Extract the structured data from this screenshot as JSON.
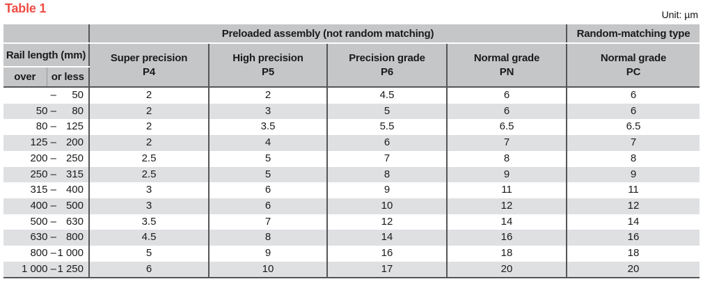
{
  "title": "Table 1",
  "unit": "Unit: µm",
  "table": {
    "group_headers": {
      "preloaded": "Preloaded assembly (not random matching)",
      "random": "Random-matching type"
    },
    "rail_length_header": "Rail length (mm)",
    "over_label": "over",
    "or_less_label": "or less",
    "columns": [
      {
        "name": "Super precision",
        "code": "P4"
      },
      {
        "name": "High precision",
        "code": "P5"
      },
      {
        "name": "Precision grade",
        "code": "P6"
      },
      {
        "name": "Normal grade",
        "code": "PN"
      },
      {
        "name": "Normal grade",
        "code": "PC"
      }
    ],
    "rows": [
      {
        "over": "–",
        "or_less": "50",
        "values": [
          "2",
          "2",
          "4.5",
          "6",
          "6"
        ]
      },
      {
        "over": "50 –",
        "or_less": "80",
        "values": [
          "2",
          "3",
          "5",
          "6",
          "6"
        ]
      },
      {
        "over": "80 –",
        "or_less": "125",
        "values": [
          "2",
          "3.5",
          "5.5",
          "6.5",
          "6.5"
        ]
      },
      {
        "over": "125 –",
        "or_less": "200",
        "values": [
          "2",
          "4",
          "6",
          "7",
          "7"
        ]
      },
      {
        "over": "200 –",
        "or_less": "250",
        "values": [
          "2.5",
          "5",
          "7",
          "8",
          "8"
        ]
      },
      {
        "over": "250 –",
        "or_less": "315",
        "values": [
          "2.5",
          "5",
          "8",
          "9",
          "9"
        ]
      },
      {
        "over": "315 –",
        "or_less": "400",
        "values": [
          "3",
          "6",
          "9",
          "11",
          "11"
        ]
      },
      {
        "over": "400 –",
        "or_less": "500",
        "values": [
          "3",
          "6",
          "10",
          "12",
          "12"
        ]
      },
      {
        "over": "500 –",
        "or_less": "630",
        "values": [
          "3.5",
          "7",
          "12",
          "14",
          "14"
        ]
      },
      {
        "over": "630 –",
        "or_less": "800",
        "values": [
          "4.5",
          "8",
          "14",
          "16",
          "16"
        ]
      },
      {
        "over": "800 –",
        "or_less": "1 000",
        "values": [
          "5",
          "9",
          "16",
          "18",
          "18"
        ]
      },
      {
        "over": "1 000 –",
        "or_less": "1 250",
        "values": [
          "6",
          "10",
          "17",
          "20",
          "20"
        ]
      }
    ]
  },
  "colors": {
    "title": "#ee4c44",
    "header_bg": "#c5c6c8",
    "row_alt_bg": "#dfe0e2",
    "border_dark": "#555557",
    "border_mid": "#98999b"
  }
}
